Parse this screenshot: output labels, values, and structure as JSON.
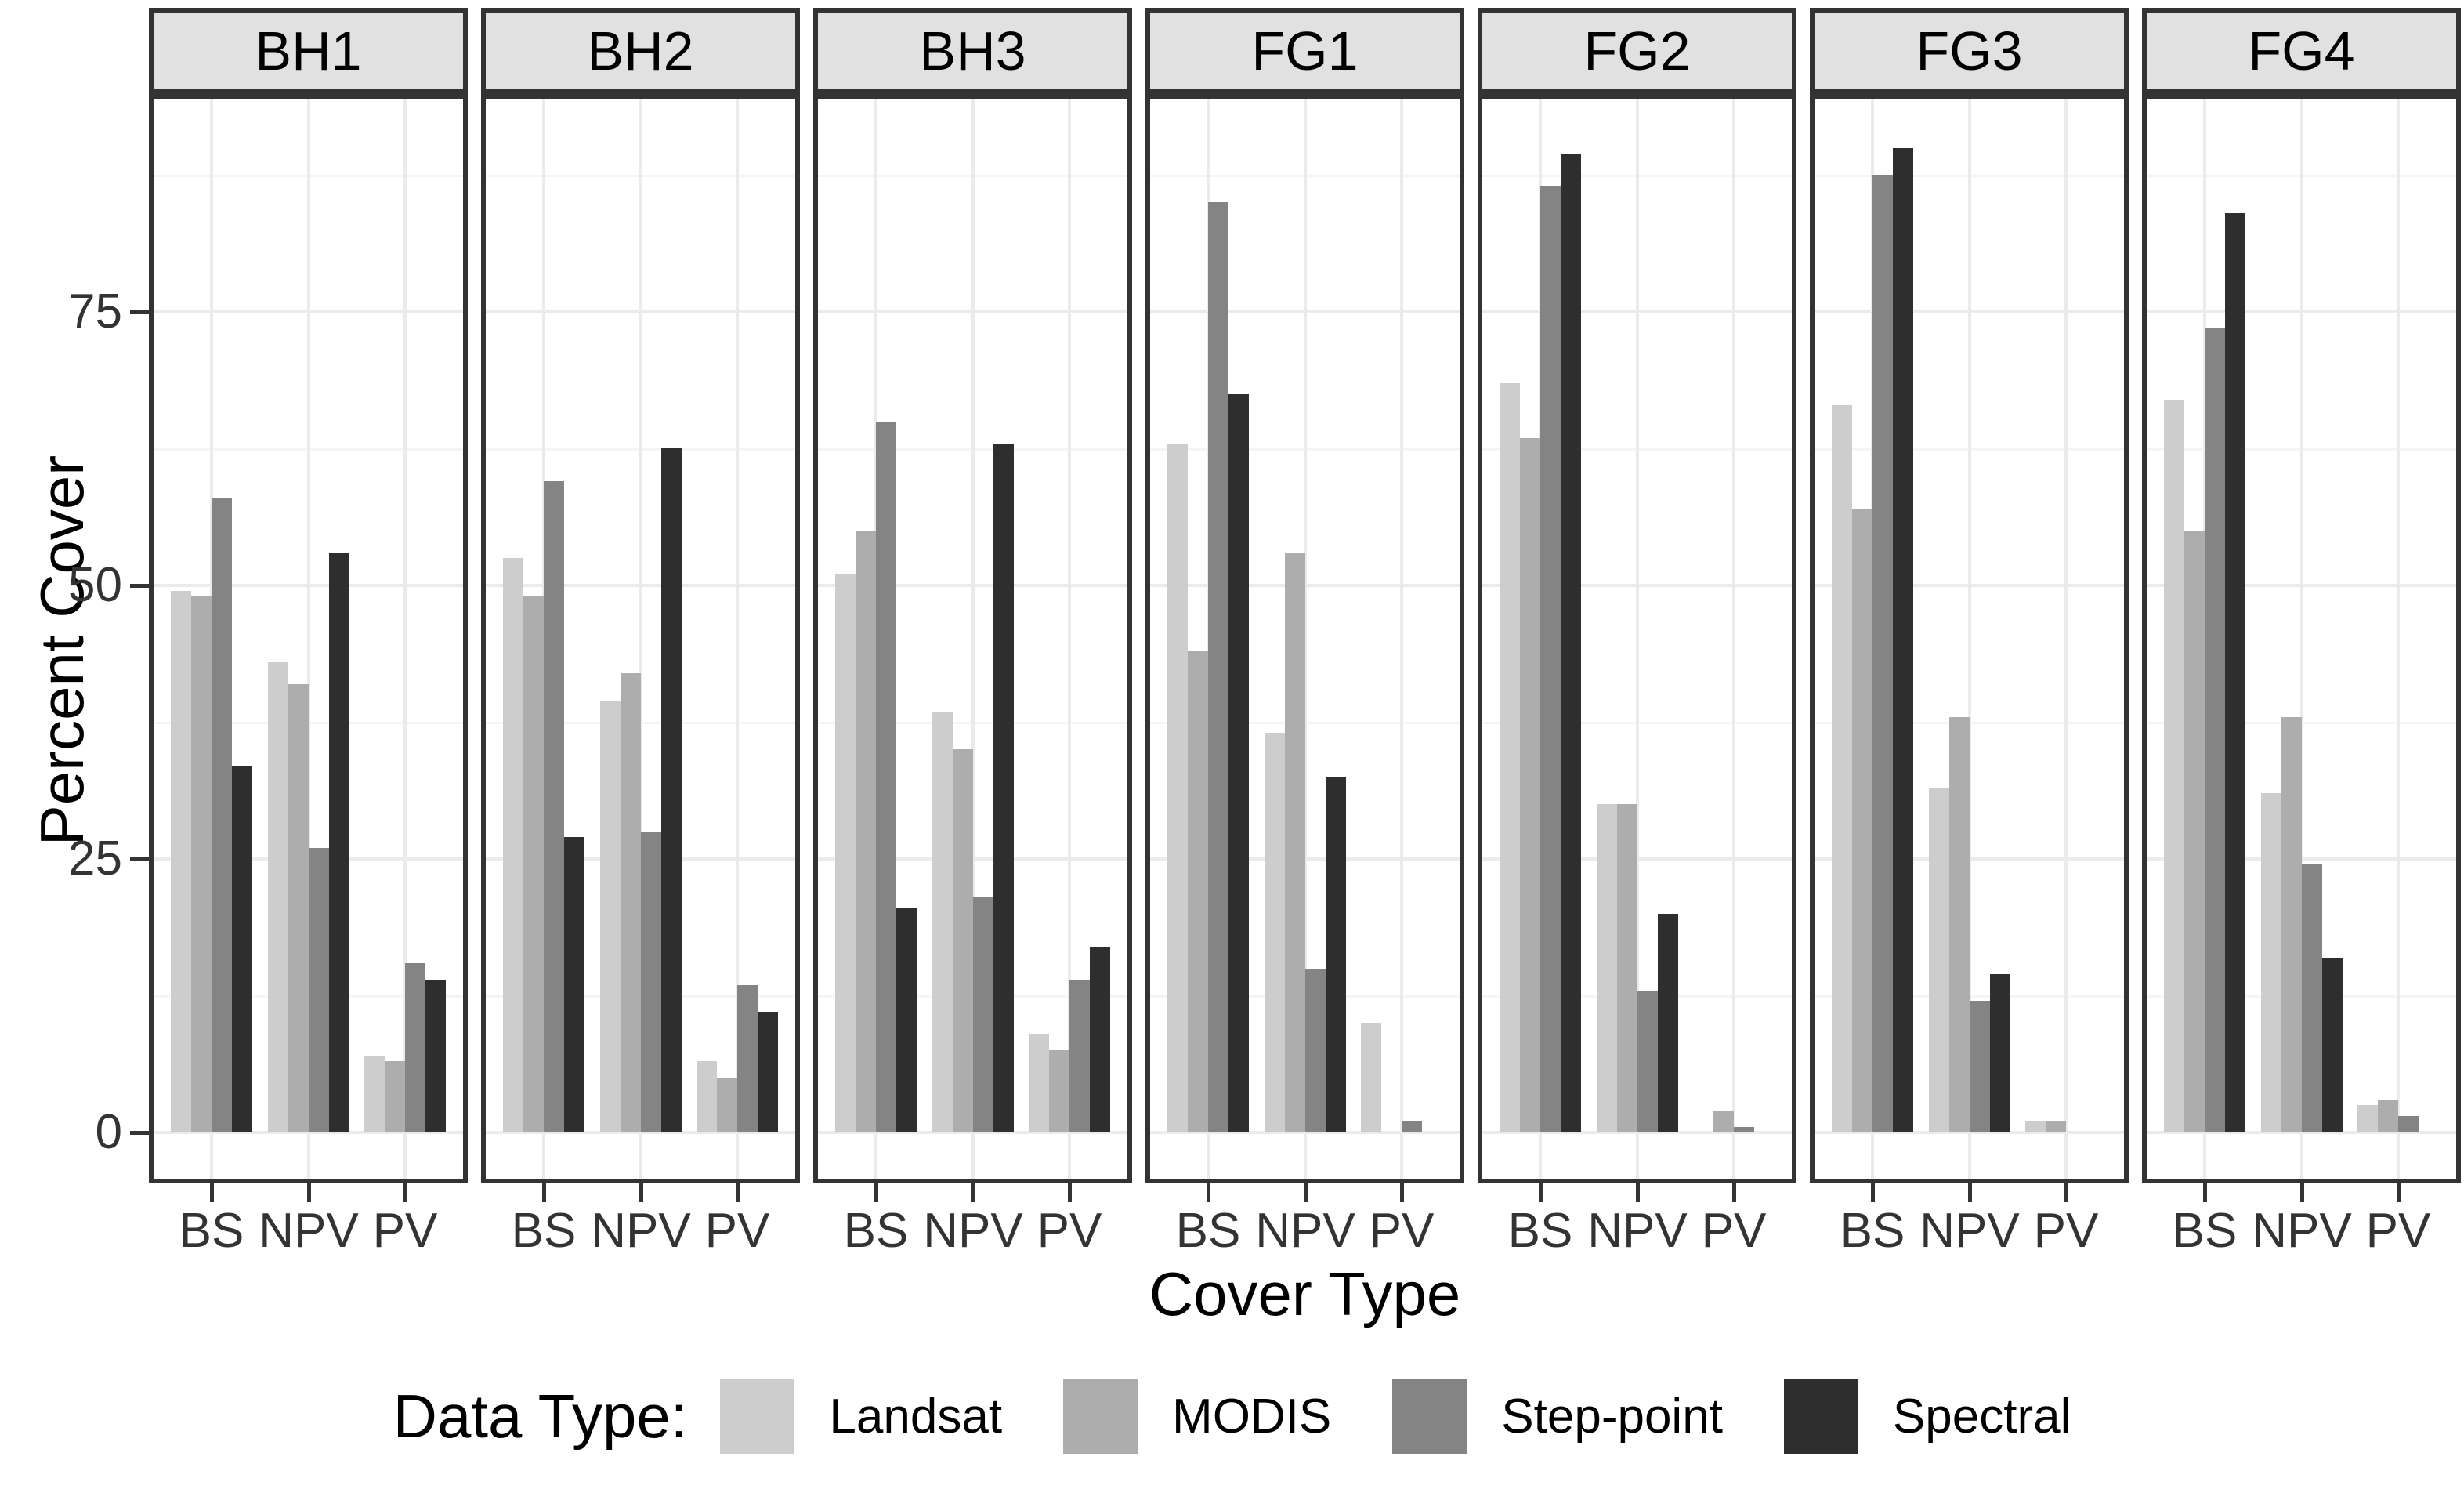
{
  "chart_data": {
    "type": "bar",
    "title": "",
    "xlabel": "Cover Type",
    "ylabel": "Percent Cover",
    "legend_title": "Data Type:",
    "legend_position": "bottom",
    "facets": [
      "BH1",
      "BH2",
      "BH3",
      "FG1",
      "FG2",
      "FG3",
      "FG4"
    ],
    "categories": [
      "BS",
      "NPV",
      "PV"
    ],
    "series": [
      "Landsat",
      "MODIS",
      "Step-point",
      "Spectral"
    ],
    "colors": {
      "Landsat": "#cdcdcd",
      "MODIS": "#adadad",
      "Step-point": "#848484",
      "Spectral": "#2e2e2e"
    },
    "yticks": [
      0,
      25,
      50,
      75
    ],
    "ylim": [
      0,
      95
    ],
    "grid": {
      "y_major": [
        0,
        25,
        50,
        75
      ],
      "y_minor": [
        12.5,
        37.5,
        62.5,
        87.5
      ]
    },
    "values": {
      "BH1": [
        [
          49.5,
          49,
          58,
          33.5
        ],
        [
          43,
          41,
          26,
          53
        ],
        [
          7,
          6.5,
          15.5,
          14
        ]
      ],
      "BH2": [
        [
          52.5,
          49,
          59.5,
          27
        ],
        [
          39.5,
          42,
          27.5,
          62.5
        ],
        [
          6.5,
          5,
          13.5,
          11
        ]
      ],
      "BH3": [
        [
          51,
          55,
          65,
          20.5
        ],
        [
          38.5,
          35,
          21.5,
          63
        ],
        [
          9,
          7.5,
          14,
          17
        ]
      ],
      "FG1": [
        [
          63,
          44,
          85,
          67.5
        ],
        [
          36.5,
          53,
          15,
          32.5
        ],
        [
          10,
          0,
          1,
          0
        ]
      ],
      "FG2": [
        [
          68.5,
          63.5,
          86.5,
          89.5
        ],
        [
          30,
          30,
          13,
          20
        ],
        [
          0,
          2,
          0.5,
          0
        ]
      ],
      "FG3": [
        [
          66.5,
          57,
          87.5,
          90
        ],
        [
          31.5,
          38,
          12,
          14.5
        ],
        [
          1,
          1,
          0,
          0
        ]
      ],
      "FG4": [
        [
          67,
          55,
          73.5,
          84
        ],
        [
          31,
          38,
          24.5,
          16
        ],
        [
          2.5,
          3,
          1.5,
          0
        ]
      ]
    },
    "panel_theme": {
      "strip_fill": "#e1e1e1",
      "border_color": "#333333",
      "grid_major_color": "#ebebeb",
      "grid_minor_color": "#f5f5f5",
      "axis_text_color": "#333333"
    }
  }
}
